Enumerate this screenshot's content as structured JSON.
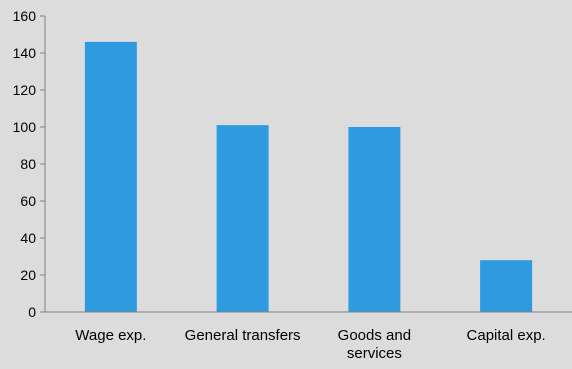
{
  "chart_data": {
    "type": "bar",
    "categories": [
      "Wage exp.",
      "General transfers",
      "Goods and services",
      "Capital exp."
    ],
    "category_lines": [
      [
        "Wage exp."
      ],
      [
        "General transfers"
      ],
      [
        "Goods and",
        "services"
      ],
      [
        "Capital exp."
      ]
    ],
    "values": [
      146,
      101,
      100,
      28
    ],
    "ylim": [
      0,
      160
    ],
    "yticks": [
      0,
      20,
      40,
      60,
      80,
      100,
      120,
      140,
      160
    ],
    "title": "",
    "xlabel": "",
    "ylabel": "",
    "grid": false,
    "colors": {
      "bar": "#2e9ae0",
      "background": "#dcdcdc",
      "axis": "#808080"
    }
  }
}
